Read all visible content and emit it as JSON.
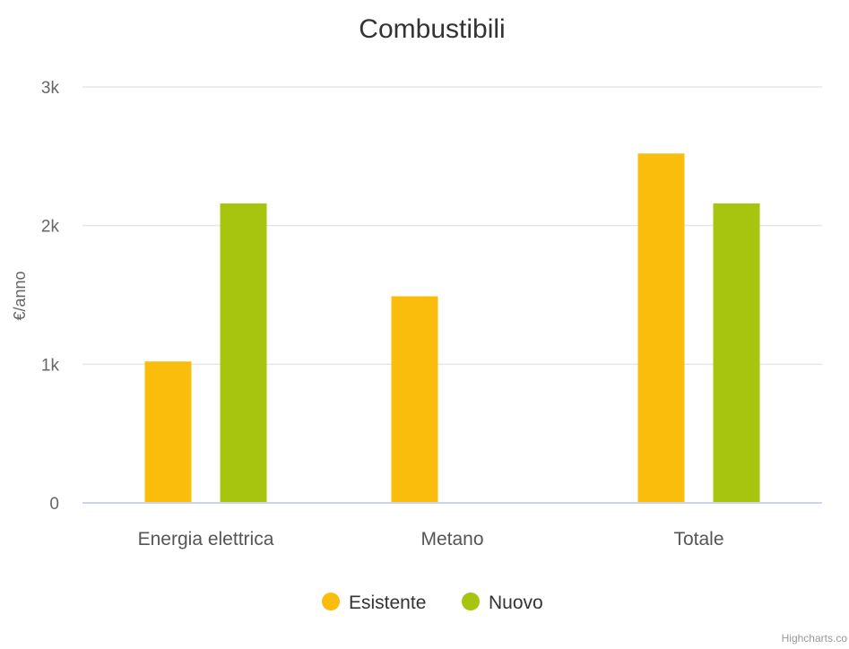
{
  "chart_data": {
    "type": "bar",
    "title": "Combustibili",
    "ylabel": "€/anno",
    "xlabel": "",
    "categories": [
      "Energia elettrica",
      "Metano",
      "Totale"
    ],
    "series": [
      {
        "name": "Esistente",
        "color": "#fbbd0b",
        "values": [
          1020,
          1490,
          2520
        ]
      },
      {
        "name": "Nuovo",
        "color": "#a7c50f",
        "values": [
          2160,
          0,
          2160
        ]
      }
    ],
    "ylim": [
      0,
      3000
    ],
    "yticks": [
      0,
      1000,
      2000,
      3000
    ],
    "ytick_labels": [
      "0",
      "1k",
      "2k",
      "3k"
    ],
    "grid": true,
    "legend_position": "bottom-center",
    "credits": "Highcharts.co"
  }
}
